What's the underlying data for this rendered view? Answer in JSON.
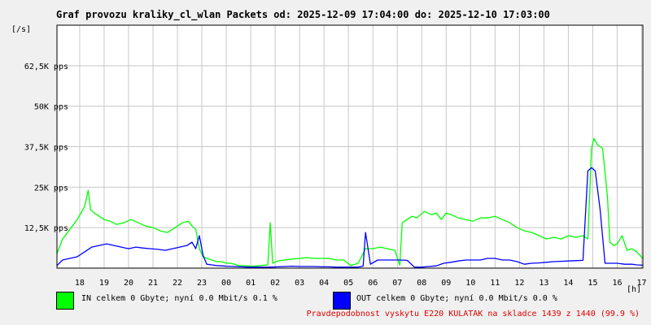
{
  "title": "Graf provozu kraliky_cl_wlan Packets od: 2025-12-09 17:04:00 do: 2025-12-10 17:03:00",
  "unit_label": "[/s]",
  "x_unit_label": "[h]",
  "legend": [
    {
      "color": "#00ff00",
      "text": "IN celkem 0 Gbyte; nyní   0.0 Mbit/s 0.1 %"
    },
    {
      "color": "#0000ff",
      "text": "OUT celkem 0 Gbyte; nyní   0.0 Mbit/s 0.0 %"
    }
  ],
  "footnote": "Pravdepodobnost vyskytu E220 KULATAK na skladce 1439 z 1440 (99.9 %)",
  "colors": {
    "in": "#00ff00",
    "out": "#0000ff",
    "plot_bg": "#ffffff",
    "page_bg": "#f0f0f0",
    "grid": "#c8c8c8",
    "footnote": "#e00000"
  },
  "chart_data": {
    "type": "line",
    "x_tick_labels": [
      "18",
      "19",
      "20",
      "21",
      "22",
      "23",
      "00",
      "01",
      "02",
      "03",
      "04",
      "05",
      "06",
      "07",
      "08",
      "09",
      "10",
      "11",
      "12",
      "13",
      "14",
      "15",
      "16",
      "17"
    ],
    "y_tick_labels": [
      "12,5K pps",
      "25K pps",
      "37,5K pps",
      "50K pps",
      "62,5K pps"
    ],
    "y_ticks": [
      12500,
      25000,
      37500,
      50000,
      62500
    ],
    "xlim": [
      17.07,
      41.05
    ],
    "ylim": [
      0,
      75000
    ],
    "grid": true,
    "series": [
      {
        "name": "IN",
        "color": "#00ff00",
        "x": [
          17.07,
          17.3,
          17.6,
          17.9,
          18.2,
          18.35,
          18.45,
          18.6,
          18.8,
          19.0,
          19.25,
          19.5,
          19.8,
          20.1,
          20.4,
          20.7,
          21.0,
          21.3,
          21.6,
          21.9,
          22.2,
          22.45,
          22.6,
          22.75,
          22.9,
          23.05,
          23.2,
          23.4,
          23.6,
          23.8,
          24.0,
          24.2,
          24.5,
          24.8,
          25.1,
          25.4,
          25.7,
          25.8,
          25.9,
          26.1,
          26.4,
          26.7,
          27.0,
          27.3,
          27.6,
          27.9,
          28.2,
          28.5,
          28.8,
          29.1,
          29.4,
          29.7,
          30.0,
          30.3,
          30.6,
          30.9,
          31.1,
          31.2,
          31.4,
          31.6,
          31.8,
          32.1,
          32.4,
          32.6,
          32.8,
          32.9,
          33.0,
          33.2,
          33.5,
          33.8,
          34.1,
          34.4,
          34.7,
          35.0,
          35.3,
          35.6,
          35.9,
          36.2,
          36.5,
          36.8,
          37.1,
          37.4,
          37.7,
          38.0,
          38.3,
          38.6,
          38.8,
          38.95,
          39.05,
          39.2,
          39.4,
          39.6,
          39.7,
          39.85,
          40.0,
          40.2,
          40.4,
          40.6,
          40.8,
          41.05
        ],
        "values": [
          4500,
          9000,
          12000,
          15000,
          19000,
          24000,
          18000,
          17000,
          16000,
          15000,
          14500,
          13500,
          14000,
          15000,
          14000,
          13000,
          12500,
          11500,
          11000,
          12500,
          14000,
          14500,
          13000,
          12000,
          6000,
          3500,
          3000,
          2500,
          2000,
          2000,
          1500,
          1500,
          800,
          700,
          600,
          800,
          1000,
          14000,
          1500,
          2200,
          2500,
          2800,
          3000,
          3200,
          3000,
          3000,
          3000,
          2500,
          2500,
          800,
          1500,
          6000,
          6000,
          6500,
          6000,
          5500,
          900,
          14000,
          15000,
          16000,
          15500,
          17500,
          16500,
          17000,
          15000,
          16000,
          17000,
          16500,
          15500,
          15000,
          14500,
          15500,
          15500,
          16000,
          15000,
          14000,
          12500,
          11500,
          11000,
          10000,
          9000,
          9500,
          9000,
          10000,
          9500,
          10000,
          9000,
          37000,
          40000,
          38000,
          37000,
          22000,
          8000,
          7000,
          7500,
          10000,
          5500,
          6000,
          5000,
          3000
        ]
      },
      {
        "name": "OUT",
        "color": "#0000ff",
        "x": [
          17.07,
          17.3,
          17.6,
          17.9,
          18.2,
          18.5,
          18.8,
          19.1,
          19.4,
          19.7,
          20.0,
          20.3,
          20.6,
          20.9,
          21.2,
          21.5,
          21.8,
          22.1,
          22.4,
          22.6,
          22.75,
          22.9,
          23.05,
          23.2,
          23.4,
          23.6,
          23.8,
          24.0,
          24.3,
          24.6,
          24.9,
          25.2,
          25.5,
          25.8,
          26.1,
          26.4,
          26.7,
          27.0,
          27.3,
          27.6,
          27.9,
          28.2,
          28.5,
          28.8,
          29.1,
          29.4,
          29.6,
          29.7,
          29.9,
          30.2,
          30.5,
          30.8,
          31.1,
          31.4,
          31.7,
          32.0,
          32.3,
          32.6,
          32.9,
          33.2,
          33.5,
          33.8,
          34.1,
          34.4,
          34.7,
          35.0,
          35.3,
          35.6,
          35.9,
          36.2,
          36.5,
          36.8,
          37.1,
          37.4,
          37.7,
          38.0,
          38.3,
          38.6,
          38.8,
          38.95,
          39.1,
          39.3,
          39.5,
          39.6,
          39.8,
          40.0,
          40.3,
          40.6,
          40.8,
          41.05
        ],
        "values": [
          800,
          2500,
          3000,
          3500,
          5000,
          6500,
          7000,
          7500,
          7000,
          6500,
          6000,
          6500,
          6200,
          6000,
          5800,
          5500,
          6000,
          6500,
          7000,
          8000,
          6000,
          10000,
          4000,
          1200,
          1000,
          800,
          700,
          600,
          500,
          400,
          300,
          300,
          300,
          300,
          400,
          500,
          600,
          500,
          500,
          500,
          400,
          400,
          300,
          300,
          300,
          300,
          600,
          11000,
          1200,
          2500,
          2500,
          2500,
          2500,
          2400,
          300,
          300,
          500,
          700,
          1500,
          1800,
          2200,
          2500,
          2500,
          2500,
          3000,
          3000,
          2500,
          2500,
          2000,
          1200,
          1500,
          1600,
          1800,
          2000,
          2100,
          2200,
          2300,
          2400,
          30000,
          31000,
          30000,
          18000,
          1500,
          1500,
          1500,
          1500,
          1200,
          1200,
          1000,
          900
        ]
      }
    ]
  }
}
